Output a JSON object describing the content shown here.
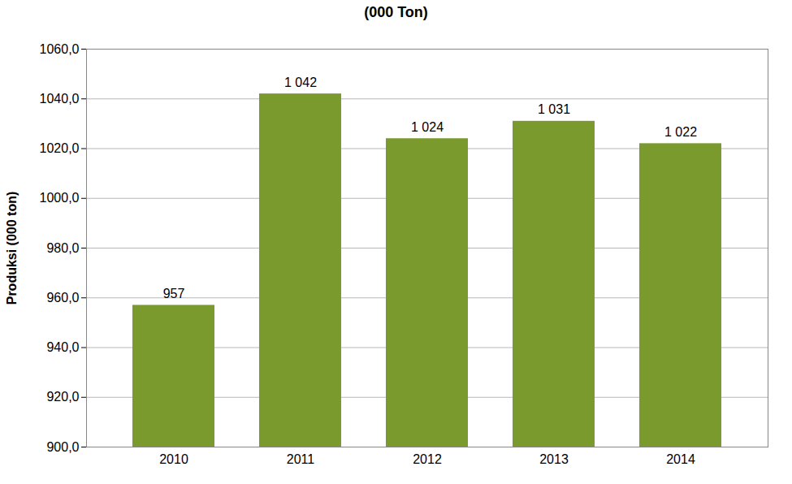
{
  "chart_data": {
    "type": "bar",
    "title": "(000 Ton)",
    "y_label": "Produksi (000 ton)",
    "categories": [
      "2010",
      "2011",
      "2012",
      "2013",
      "2014"
    ],
    "values": [
      957,
      1042,
      1024,
      1031,
      1022
    ],
    "value_labels": [
      "957",
      "1 042",
      "1 024",
      "1 031",
      "1 022"
    ],
    "color": "#7a9a2e",
    "ylim": [
      900,
      1060
    ],
    "yticks": [
      {
        "value": 900,
        "label": "900,0"
      },
      {
        "value": 920,
        "label": "920,0"
      },
      {
        "value": 940,
        "label": "940,0"
      },
      {
        "value": 960,
        "label": "960,0"
      },
      {
        "value": 980,
        "label": "980,0"
      },
      {
        "value": 1000,
        "label": "1000,0"
      },
      {
        "value": 1020,
        "label": "1020,0"
      },
      {
        "value": 1040,
        "label": "1040,0"
      },
      {
        "value": 1060,
        "label": "1060,0"
      }
    ],
    "grid": true,
    "data_labels": true
  }
}
